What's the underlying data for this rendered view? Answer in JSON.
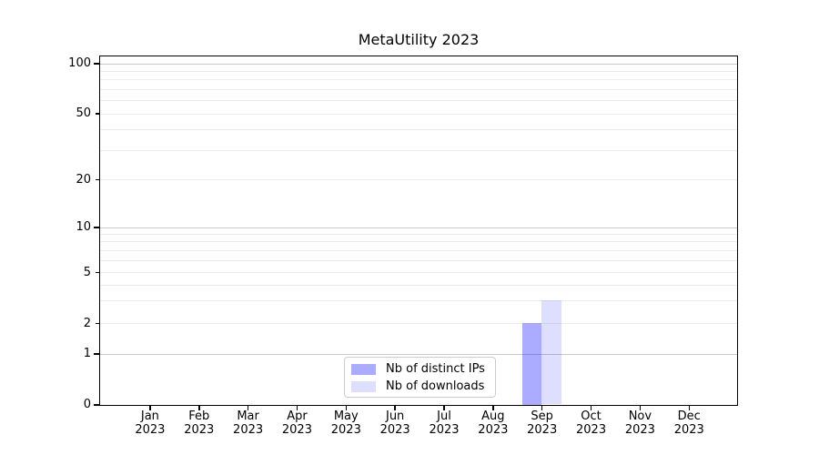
{
  "chart_data": {
    "type": "bar",
    "title": "MetaUtility 2023",
    "categories": [
      "Jan 2023",
      "Feb 2023",
      "Mar 2023",
      "Apr 2023",
      "May 2023",
      "Jun 2023",
      "Jul 2023",
      "Aug 2023",
      "Sep 2023",
      "Oct 2023",
      "Nov 2023",
      "Dec 2023"
    ],
    "series": [
      {
        "name": "Nb of distinct IPs",
        "color": "rgba(0,0,255,0.33)",
        "values": [
          0,
          0,
          0,
          0,
          0,
          0,
          0,
          0,
          2,
          0,
          0,
          0
        ]
      },
      {
        "name": "Nb of downloads",
        "color": "rgba(0,0,255,0.13)",
        "values": [
          0,
          0,
          0,
          0,
          0,
          0,
          0,
          0,
          3,
          0,
          0,
          0
        ]
      }
    ],
    "yscale": "symlog",
    "yticks": [
      0,
      1,
      2,
      5,
      10,
      20,
      50,
      100
    ],
    "ytick_major": [
      0,
      1,
      10,
      100
    ],
    "grid_major_values": [
      1,
      10,
      100
    ],
    "grid_minor_values": [
      2,
      3,
      4,
      5,
      6,
      7,
      8,
      9,
      20,
      30,
      40,
      50,
      60,
      70,
      80,
      90
    ],
    "ylim": [
      0,
      111
    ],
    "xlabel": "",
    "ylabel": "",
    "grid": true,
    "legend": {
      "labels": [
        "Nb of distinct IPs",
        "Nb of downloads"
      ],
      "position": "lower center"
    },
    "colors": {
      "axis": "#000000",
      "grid_major": "#c9c9c9",
      "grid_minor": "#ececec",
      "legend_border": "#cccccc",
      "background": "#ffffff"
    }
  }
}
